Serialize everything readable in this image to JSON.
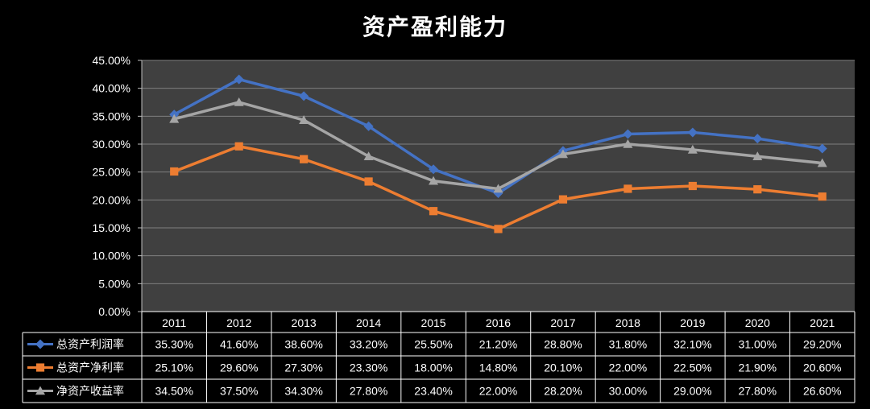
{
  "chart_data": {
    "type": "line",
    "title": "资产盈利能力",
    "categories": [
      "2011",
      "2012",
      "2013",
      "2014",
      "2015",
      "2016",
      "2017",
      "2018",
      "2019",
      "2020",
      "2021"
    ],
    "ylim": [
      0,
      45
    ],
    "ytick_step": 5,
    "y_format": "percent_2dp",
    "grid": true,
    "legend_placement": "data-table-left",
    "series": [
      {
        "name": "总资产利润率",
        "color": "#4472C4",
        "marker": "diamond",
        "values": [
          35.3,
          41.6,
          38.6,
          33.2,
          25.5,
          21.2,
          28.8,
          31.8,
          32.1,
          31.0,
          29.2
        ],
        "labels": [
          "35.30%",
          "41.60%",
          "38.60%",
          "33.20%",
          "25.50%",
          "21.20%",
          "28.80%",
          "31.80%",
          "32.10%",
          "31.00%",
          "29.20%"
        ]
      },
      {
        "name": "总资产净利率",
        "color": "#ED7D31",
        "marker": "square",
        "values": [
          25.1,
          29.6,
          27.3,
          23.3,
          18.0,
          14.8,
          20.1,
          22.0,
          22.5,
          21.9,
          20.6
        ],
        "labels": [
          "25.10%",
          "29.60%",
          "27.30%",
          "23.30%",
          "18.00%",
          "14.80%",
          "20.10%",
          "22.00%",
          "22.50%",
          "21.90%",
          "20.60%"
        ]
      },
      {
        "name": "净资产收益率",
        "color": "#A5A5A5",
        "marker": "triangle",
        "values": [
          34.5,
          37.5,
          34.3,
          27.8,
          23.4,
          22.0,
          28.2,
          30.0,
          29.0,
          27.8,
          26.6
        ],
        "labels": [
          "34.50%",
          "37.50%",
          "34.30%",
          "27.80%",
          "23.40%",
          "22.00%",
          "28.20%",
          "30.00%",
          "29.00%",
          "27.80%",
          "26.60%"
        ]
      }
    ],
    "colors": {
      "plot_background": "#404040",
      "page_background": "#000000",
      "gridline": "#7f7f7f",
      "table_border": "#ffffff"
    }
  }
}
